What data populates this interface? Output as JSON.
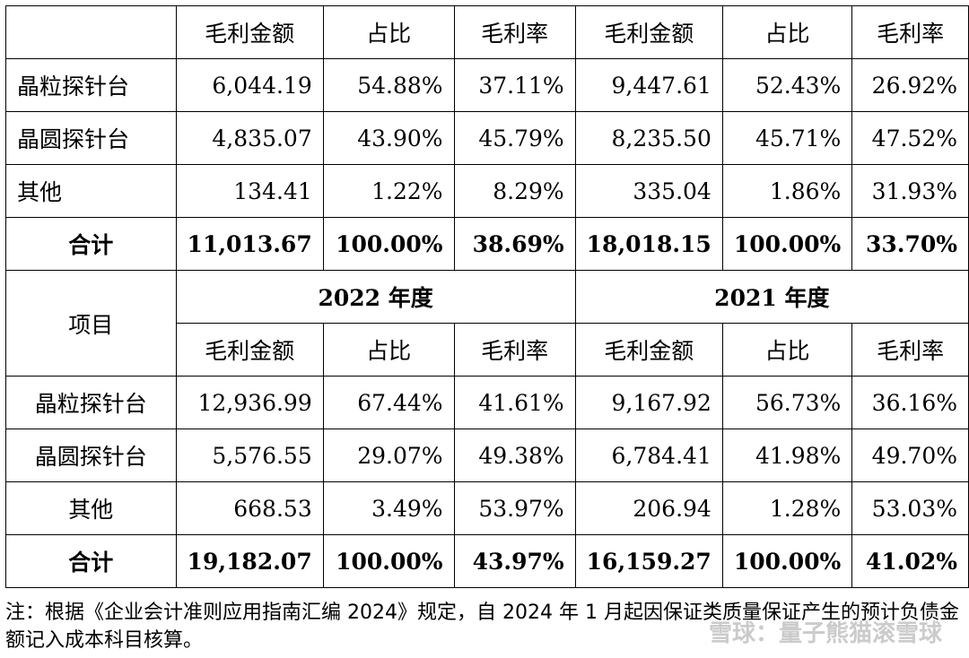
{
  "upper": {
    "headers": [
      "毛利金额",
      "占比",
      "毛利率",
      "毛利金额",
      "占比",
      "毛利率"
    ],
    "rows": [
      {
        "name": "晶粒探针台",
        "v": [
          "6,044.19",
          "54.88%",
          "37.11%",
          "9,447.61",
          "52.43%",
          "26.92%"
        ]
      },
      {
        "name": "晶圆探针台",
        "v": [
          "4,835.07",
          "43.90%",
          "45.79%",
          "8,235.50",
          "45.71%",
          "47.52%"
        ]
      },
      {
        "name": "其他",
        "v": [
          "134.41",
          "1.22%",
          "8.29%",
          "335.04",
          "1.86%",
          "31.93%"
        ]
      }
    ],
    "total": {
      "name": "合计",
      "v": [
        "11,013.67",
        "100.00%",
        "38.69%",
        "18,018.15",
        "100.00%",
        "33.70%"
      ]
    }
  },
  "lower": {
    "item_label": "项目",
    "year_a": "2022 年度",
    "year_b": "2021 年度",
    "headers": [
      "毛利金额",
      "占比",
      "毛利率",
      "毛利金额",
      "占比",
      "毛利率"
    ],
    "rows": [
      {
        "name": "晶粒探针台",
        "v": [
          "12,936.99",
          "67.44%",
          "41.61%",
          "9,167.92",
          "56.73%",
          "36.16%"
        ]
      },
      {
        "name": "晶圆探针台",
        "v": [
          "5,576.55",
          "29.07%",
          "49.38%",
          "6,784.41",
          "41.98%",
          "49.70%"
        ]
      },
      {
        "name": "其他",
        "v": [
          "668.53",
          "3.49%",
          "53.97%",
          "206.94",
          "1.28%",
          "53.03%"
        ]
      }
    ],
    "total": {
      "name": "合计",
      "v": [
        "19,182.07",
        "100.00%",
        "43.97%",
        "16,159.27",
        "100.00%",
        "41.02%"
      ]
    }
  },
  "note": "注：根据《企业会计准则应用指南汇编 2024》规定，自 2024 年 1 月起因保证类质量保证产生的预计负债金额记入成本科目核算。",
  "watermark": "雪球：量子熊猫滚雪球"
}
